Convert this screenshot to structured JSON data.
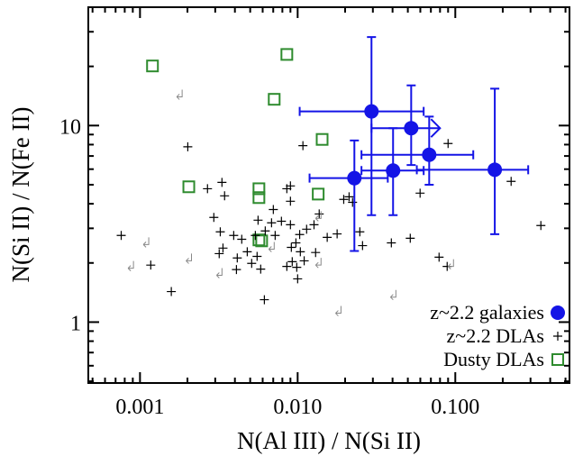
{
  "chart_data": {
    "type": "scatter",
    "x_label": "N(Al III) / N(Si II)",
    "y_label": "N(Si II) / N(Fe II)",
    "xlog": true,
    "ylog": true,
    "xlim": [
      0.00047,
      0.53
    ],
    "ylim": [
      0.49,
      40
    ],
    "xticks": [
      0.001,
      {
        "value": 0.01,
        "label": "0.010"
      },
      {
        "value": 0.1,
        "label": "0.100"
      }
    ],
    "yticks": [
      1,
      10
    ],
    "legend": "lower right",
    "series": [
      {
        "name": "z~2.2 galaxies",
        "color": "#1414e6",
        "marker": "circle",
        "x": [
          0.0294,
          0.0525,
          0.0683,
          0.178,
          0.0403,
          0.0229
        ],
        "values": [
          11.8,
          9.7,
          7.1,
          5.96,
          5.9,
          5.4
        ],
        "x_lo": [
          0.0103,
          0.0294,
          0.0254,
          0.057,
          0.0254,
          0.0119
        ],
        "x_hi": [
          0.063,
          0.08,
          0.13,
          0.29,
          0.063,
          0.0373
        ],
        "x_lower_limit": [
          false,
          true,
          false,
          false,
          false,
          false
        ],
        "y_lo": [
          3.5,
          6.3,
          5.0,
          2.8,
          3.5,
          2.3
        ],
        "y_hi": [
          28.2,
          16,
          11.1,
          15.4,
          9.7,
          8.4
        ]
      },
      {
        "name": "z~2.2 DLAs",
        "color": "#000000",
        "marker": "plus",
        "x": [
          0.00201,
          0.00076,
          0.00117,
          0.00158,
          0.00268,
          0.00331,
          0.00344,
          0.00294,
          0.00323,
          0.00336,
          0.00318,
          0.00393,
          0.00442,
          0.00414,
          0.00409,
          0.00479,
          0.00511,
          0.00553,
          0.00583,
          0.00615,
          0.00561,
          0.00623,
          0.00701,
          0.00683,
          0.0072,
          0.00789,
          0.00854,
          0.009,
          0.009,
          0.009,
          0.00912,
          0.00924,
          0.00975,
          0.00987,
          0.01,
          0.0104,
          0.011,
          0.0114,
          0.0127,
          0.0137,
          0.0154,
          0.0178,
          0.0108,
          0.0196,
          0.0212,
          0.0223,
          0.0248,
          0.0258,
          0.0393,
          0.0518,
          0.0598,
          0.09,
          0.0789,
          0.0888,
          0.226,
          0.349,
          0.0103,
          0.00854,
          0.00539,
          0.013
        ],
        "values": [
          7.8,
          2.76,
          1.95,
          1.43,
          4.77,
          5.14,
          4.39,
          3.41,
          2.88,
          2.38,
          2.23,
          2.76,
          2.64,
          2.12,
          1.85,
          2.28,
          1.99,
          2.16,
          1.86,
          1.3,
          3.3,
          2.91,
          3.74,
          3.2,
          2.76,
          3.26,
          4.77,
          4.93,
          4.12,
          3.13,
          2.4,
          2.03,
          2.53,
          1.9,
          1.66,
          2.28,
          2.05,
          2.97,
          3.13,
          3.55,
          2.7,
          2.81,
          7.9,
          4.21,
          4.34,
          4.07,
          2.88,
          2.45,
          2.53,
          2.67,
          4.53,
          8.1,
          2.14,
          1.92,
          5.2,
          3.1,
          2.79,
          1.92,
          2.76,
          2.26
        ]
      },
      {
        "name": "Dusty DLAs",
        "color": "#2e8b2e",
        "marker": "square",
        "x": [
          0.0012,
          0.00854,
          0.0071,
          0.0143,
          0.00204,
          0.00568,
          0.00568,
          0.0135,
          0.00568,
          0.00591
        ],
        "values": [
          20.1,
          23.0,
          13.6,
          8.5,
          4.88,
          4.77,
          4.3,
          4.48,
          2.62,
          2.59
        ]
      }
    ],
    "limit_points": {
      "color": "#888888",
      "x": [
        0.00171,
        0.00084,
        0.00105,
        0.00196,
        0.00306,
        0.00656,
        0.013,
        0.0174,
        0.0388,
        0.09,
        0.013
      ],
      "values": [
        14.0,
        1.88,
        2.48,
        2.05,
        1.73,
        2.35,
        3.37,
        1.11,
        1.34,
        1.92,
        1.95
      ]
    }
  }
}
